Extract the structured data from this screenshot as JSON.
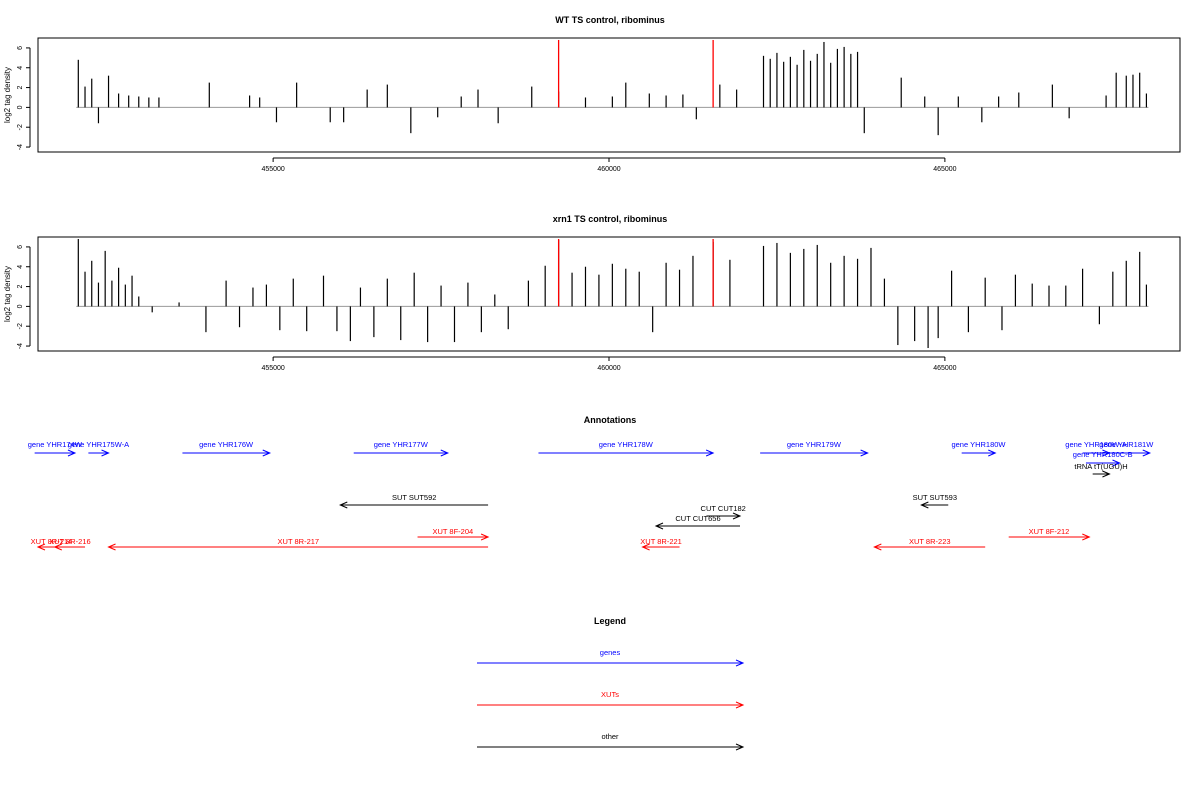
{
  "chart_data": [
    {
      "type": "bar",
      "title": "WT TS control, ribominus",
      "ylabel": "log2 tag density",
      "xlim": [
        451500,
        468500
      ],
      "ylim": [
        -4.5,
        7
      ],
      "x_ticks": [
        455000,
        460000,
        465000
      ],
      "y_ticks": [
        -4,
        -2,
        0,
        2,
        4,
        6
      ],
      "highlight_lines": [
        {
          "x": 459250,
          "y": 6.8
        },
        {
          "x": 461550,
          "y": 6.8
        }
      ],
      "series": [
        {
          "x": [
            452100,
            452200,
            452300,
            452400,
            452550,
            452700,
            452850,
            453000,
            453150,
            453300,
            454050,
            454650,
            454800,
            455050,
            455350,
            455850,
            456050,
            456400,
            456700,
            457050,
            457450,
            457800,
            458050,
            458350,
            458850,
            459250,
            459650,
            460050,
            460250,
            460600,
            460850,
            461100,
            461300,
            461650,
            461900,
            462300,
            462400,
            462500,
            462600,
            462700,
            462800,
            462900,
            463000,
            463100,
            463200,
            463300,
            463400,
            463500,
            463600,
            463700,
            463800,
            464350,
            464700,
            464900,
            465200,
            465550,
            465800,
            466100,
            466600,
            466850,
            467400,
            467550,
            467700,
            467800,
            467900,
            468000
          ],
          "values": [
            4.8,
            2.1,
            2.9,
            -1.6,
            3.2,
            1.4,
            1.2,
            1.1,
            1.0,
            1.0,
            2.5,
            1.2,
            1.0,
            -1.5,
            2.5,
            -1.5,
            -1.5,
            1.8,
            2.3,
            -2.6,
            -1.0,
            1.1,
            1.8,
            -1.6,
            2.1,
            1.6,
            1.0,
            1.1,
            2.5,
            1.4,
            1.2,
            1.3,
            -1.2,
            2.3,
            1.8,
            5.2,
            4.9,
            5.5,
            4.6,
            5.1,
            4.3,
            5.8,
            4.7,
            5.4,
            6.6,
            4.5,
            5.9,
            6.1,
            5.4,
            5.6,
            -2.6,
            3.0,
            1.1,
            -2.8,
            1.1,
            -1.5,
            1.1,
            1.5,
            2.3,
            -1.1,
            1.2,
            3.5,
            3.2,
            3.3,
            3.5,
            1.4
          ]
        }
      ]
    },
    {
      "type": "bar",
      "title": "xrn1 TS control, ribominus",
      "ylabel": "log2 tag density",
      "xlim": [
        451500,
        468500
      ],
      "ylim": [
        -4.5,
        7
      ],
      "x_ticks": [
        455000,
        460000,
        465000
      ],
      "y_ticks": [
        -4,
        -2,
        0,
        2,
        4,
        6
      ],
      "highlight_lines": [
        {
          "x": 459250,
          "y": 6.8
        },
        {
          "x": 461550,
          "y": 6.8
        }
      ],
      "series": [
        {
          "x": [
            452100,
            452200,
            452300,
            452400,
            452500,
            452600,
            452700,
            452800,
            452900,
            453000,
            453200,
            453600,
            454000,
            454300,
            454500,
            454700,
            454900,
            455100,
            455300,
            455500,
            455750,
            455950,
            456150,
            456300,
            456500,
            456700,
            456900,
            457100,
            457300,
            457500,
            457700,
            457900,
            458100,
            458300,
            458500,
            458800,
            459050,
            459250,
            459450,
            459650,
            459850,
            460050,
            460250,
            460450,
            460650,
            460850,
            461050,
            461250,
            461550,
            461800,
            462300,
            462500,
            462700,
            462900,
            463100,
            463300,
            463500,
            463700,
            463900,
            464100,
            464300,
            464550,
            464750,
            464900,
            465100,
            465350,
            465600,
            465850,
            466050,
            466300,
            466550,
            466800,
            467050,
            467300,
            467500,
            467700,
            467900,
            468000
          ],
          "values": [
            6.8,
            3.5,
            4.6,
            2.4,
            5.6,
            2.6,
            3.9,
            2.2,
            3.1,
            1.0,
            -0.6,
            0.4,
            -2.6,
            2.6,
            -2.1,
            1.9,
            2.2,
            -2.4,
            2.8,
            -2.5,
            3.1,
            -2.5,
            -3.5,
            1.9,
            -3.1,
            2.8,
            -3.4,
            3.4,
            -3.6,
            2.1,
            -3.6,
            2.4,
            -2.6,
            1.2,
            -2.3,
            2.6,
            4.1,
            6.7,
            3.4,
            4.0,
            3.2,
            4.3,
            3.8,
            3.5,
            -2.6,
            4.4,
            3.7,
            5.1,
            6.5,
            4.7,
            6.1,
            6.4,
            5.4,
            5.8,
            6.2,
            4.4,
            5.1,
            4.8,
            5.9,
            2.8,
            -3.9,
            -3.5,
            -4.2,
            -3.2,
            3.6,
            -2.6,
            2.9,
            -2.4,
            3.2,
            2.3,
            2.1,
            2.1,
            3.8,
            -1.8,
            3.5,
            4.6,
            5.5,
            2.2
          ]
        }
      ]
    }
  ],
  "annotations": {
    "title": "Annotations",
    "genes": [
      {
        "label": "gene YHR174W",
        "x_from": 451450,
        "x_to": 452050
      },
      {
        "label": "gene YHR175W-A",
        "x_from": 452250,
        "x_to": 452550
      },
      {
        "label": "gene YHR176W",
        "x_from": 453650,
        "x_to": 454950
      },
      {
        "label": "gene YHR177W",
        "x_from": 456200,
        "x_to": 457600
      },
      {
        "label": "gene YHR178W",
        "x_from": 458950,
        "x_to": 461550
      },
      {
        "label": "gene YHR179W",
        "x_from": 462250,
        "x_to": 463850
      },
      {
        "label": "gene YHR180W",
        "x_from": 465250,
        "x_to": 465750
      },
      {
        "label": "gene YHR180W-A",
        "x_from": 467050,
        "x_to": 467450
      },
      {
        "label": "gene YHR180C-B",
        "x_from": 467100,
        "x_to": 467600
      },
      {
        "label": "gene YHR181W",
        "x_from": 467350,
        "x_to": 468050
      }
    ],
    "other": [
      {
        "label": "tRNA tT(UGU)H",
        "x_from": 467200,
        "x_to": 467450
      },
      {
        "label": "SUT SUT592",
        "x_from": 458200,
        "x_to": 456000
      },
      {
        "label": "SUT SUT593",
        "x_from": 465050,
        "x_to": 464650
      },
      {
        "label": "CUT CUT182",
        "x_from": 461450,
        "x_to": 461950
      },
      {
        "label": "CUT CUT656",
        "x_from": 461950,
        "x_to": 460700
      }
    ],
    "xuts": [
      {
        "label": "XUT 8R-214",
        "x_from": 451900,
        "x_to": 451500
      },
      {
        "label": "XUT 8R-216",
        "x_from": 452200,
        "x_to": 451750
      },
      {
        "label": "XUT 8R-217",
        "x_from": 458200,
        "x_to": 452550
      },
      {
        "label": "XUT 8F-204",
        "x_from": 457150,
        "x_to": 458200
      },
      {
        "label": "XUT 8R-221",
        "x_from": 461050,
        "x_to": 460500
      },
      {
        "label": "XUT 8R-223",
        "x_from": 465600,
        "x_to": 463950
      },
      {
        "label": "XUT 8F-212",
        "x_from": 465950,
        "x_to": 467150
      }
    ]
  },
  "legend": {
    "title": "Legend",
    "items": [
      {
        "label": "genes",
        "color": "#0000FF"
      },
      {
        "label": "XUTs",
        "color": "#FF0000"
      },
      {
        "label": "other",
        "color": "#000000"
      }
    ]
  },
  "colors": {
    "bars": "#000000",
    "highlight": "#FF0000",
    "genes": "#0000FF",
    "xuts": "#FF0000",
    "other": "#000000"
  }
}
